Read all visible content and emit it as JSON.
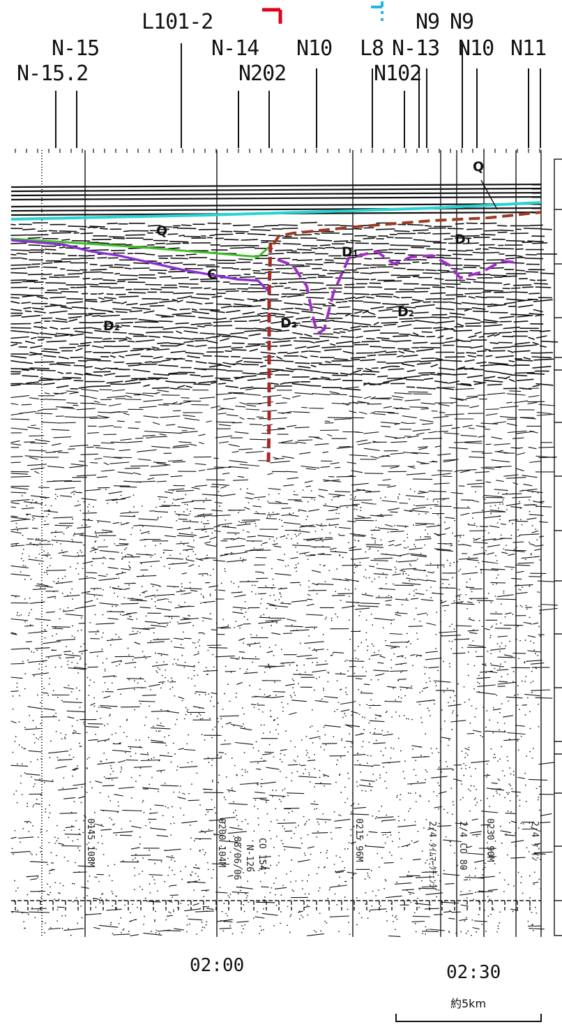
{
  "colors": {
    "fault_main": "#e3001b",
    "fault_inferred": "#21b5e0",
    "horizon_q_sea": "#27d3d3",
    "horizon_q_base": "#3fbf2a",
    "horizon_c": "#8a2fd0",
    "horizon_d1": "#a02fc8",
    "horizon_d1_top": "#9a3b22",
    "fault_trace": "#a52a2a",
    "ink": "#111111"
  },
  "labels": {
    "l101_2": "L101-2",
    "n15": "N-15",
    "n15_2": "N-15.2",
    "n14": "N-14",
    "n202": "N202",
    "n10a": "N10",
    "l8": "L8",
    "n13": "N-13",
    "n102": "N102",
    "n9a": "N9",
    "n9b": "N9",
    "n10b": "N10",
    "n11": "N11"
  },
  "units": {
    "q_left": "Q",
    "q_right": "Q",
    "c": "C",
    "d1_mid": "D₁",
    "d1_right": "D₁",
    "d2_left": "D₂",
    "d2_mid": "D₂",
    "d2_right": "D₂"
  },
  "record_annotations": {
    "a1": "0145 108M",
    "a2": "0200 104M",
    "a3": "88/06/06",
    "a4": "N-126",
    "a5": "CO 154",
    "a6": "0215 96M",
    "a7": "2/4 ﾀｲﾑﾏｰｸﾁｪﾝｼﾞ",
    "a8": "2/4 CO 80",
    "a9": "0230 90M",
    "a10": "2/4 ｹﾞｲﾝ"
  },
  "time_marks": {
    "t1": "02:00",
    "t2": "02:30"
  },
  "scale": {
    "label": "約5km"
  }
}
